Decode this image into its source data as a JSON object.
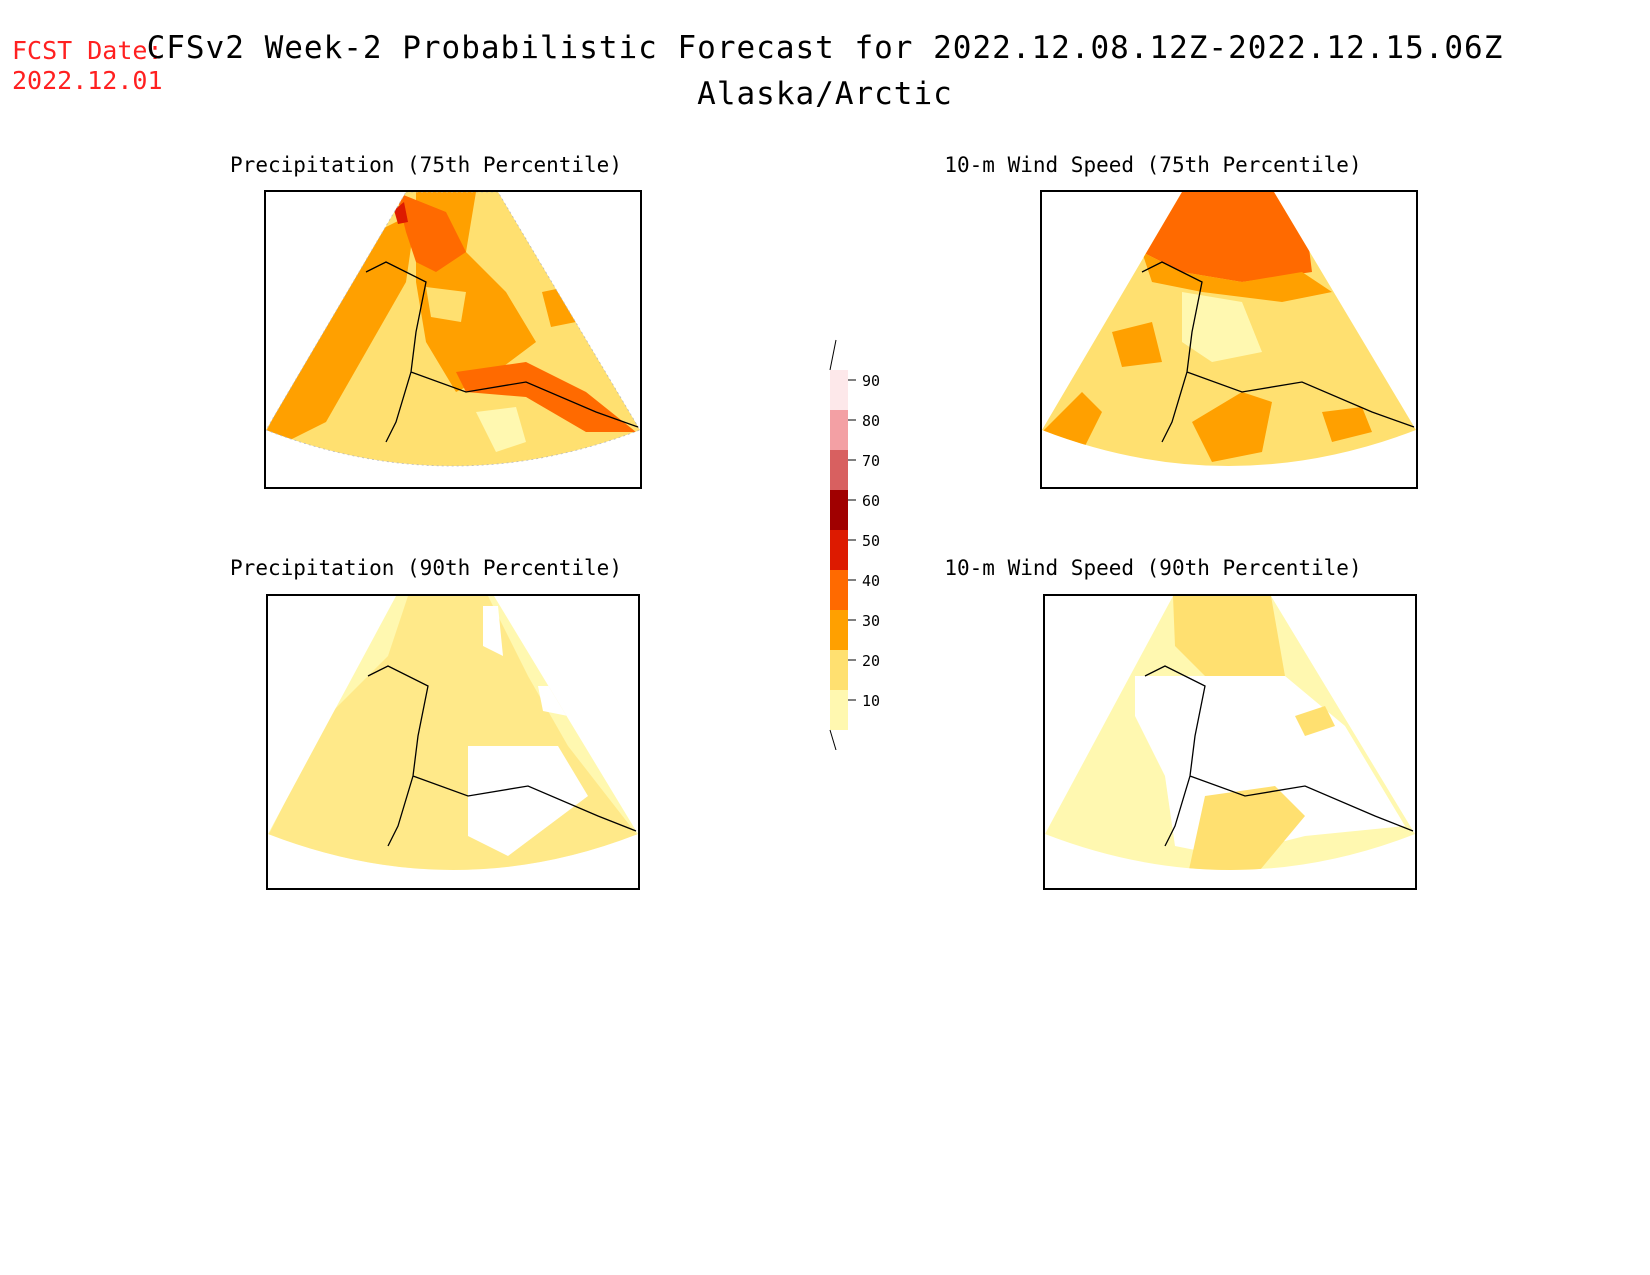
{
  "header": {
    "fcst_label": "FCST Date:",
    "fcst_date": "2022.12.01",
    "title": "CFSv2 Week-2 Probabilistic Forecast for 2022.12.08.12Z-2022.12.15.06Z",
    "subtitle": "Alaska/Arctic"
  },
  "panels": [
    {
      "title": "Precipitation (75th Percentile)"
    },
    {
      "title": "10-m Wind Speed (75th Percentile)"
    },
    {
      "title": "Precipitation (90th Percentile)"
    },
    {
      "title": "10-m Wind Speed (90th Percentile)"
    }
  ],
  "legend": {
    "levels": [
      "90",
      "80",
      "70",
      "60",
      "50",
      "40",
      "30",
      "20",
      "10"
    ],
    "colors": {
      "above90": "#fde8ea",
      "80_90": "#f3a0a4",
      "70_80": "#d86060",
      "60_70": "#a00000",
      "50_60": "#dd1a00",
      "40_50": "#ff6a00",
      "30_40": "#ffa000",
      "20_30": "#ffe070",
      "10_20": "#fff8b0"
    }
  }
}
